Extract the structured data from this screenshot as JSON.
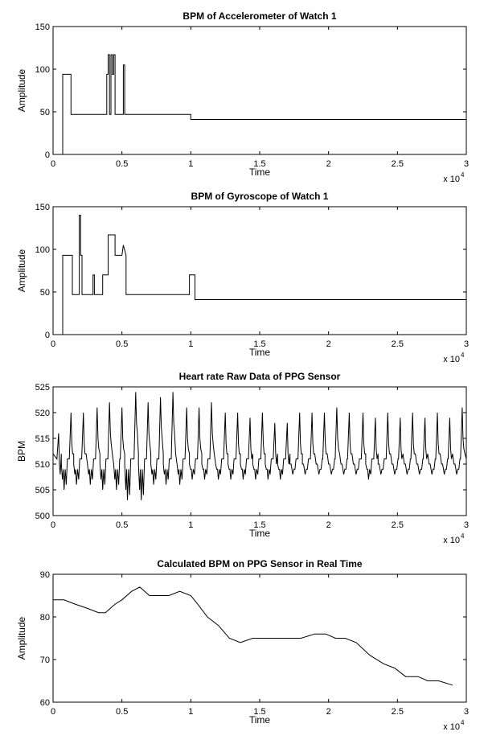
{
  "chart_data": [
    {
      "type": "line",
      "title": "BPM of Accelerometer of Watch 1",
      "xlabel": "Time",
      "ylabel": "Amplitude",
      "x_exponent": "x 10",
      "x_exponent_power": "4",
      "xlim": [
        0,
        3
      ],
      "ylim": [
        0,
        150
      ],
      "xticks": [
        "0",
        "0.5",
        "1",
        "1.5",
        "2",
        "2.5",
        "3"
      ],
      "yticks": [
        "0",
        "50",
        "100",
        "150"
      ],
      "grid": false,
      "step": true,
      "series": [
        {
          "x": [
            0.07,
            0.07,
            0.13,
            0.13,
            0.39,
            0.39,
            0.4,
            0.4,
            0.41,
            0.41,
            0.42,
            0.42,
            0.43,
            0.43,
            0.44,
            0.44,
            0.45,
            0.45,
            0.51,
            0.51,
            0.52,
            0.52,
            1.0,
            1.0,
            3.0
          ],
          "y": [
            0,
            94,
            94,
            47,
            47,
            94,
            94,
            117,
            117,
            47,
            47,
            117,
            117,
            94,
            94,
            117,
            117,
            47,
            47,
            105,
            105,
            47,
            47,
            41,
            41
          ]
        }
      ]
    },
    {
      "type": "line",
      "title": "BPM of Gyroscope of Watch 1",
      "xlabel": "Time",
      "ylabel": "Amplitude",
      "x_exponent": "x 10",
      "x_exponent_power": "4",
      "xlim": [
        0,
        3
      ],
      "ylim": [
        0,
        150
      ],
      "xticks": [
        "0",
        "0.5",
        "1",
        "1.5",
        "2",
        "2.5",
        "3"
      ],
      "yticks": [
        "0",
        "50",
        "100",
        "150"
      ],
      "grid": false,
      "step": true,
      "series": [
        {
          "x": [
            0.07,
            0.07,
            0.14,
            0.14,
            0.19,
            0.19,
            0.2,
            0.2,
            0.21,
            0.21,
            0.29,
            0.29,
            0.3,
            0.3,
            0.36,
            0.36,
            0.4,
            0.4,
            0.45,
            0.45,
            0.5,
            0.51,
            0.53,
            0.53,
            0.99,
            0.99,
            1.03,
            1.03,
            3.0
          ],
          "y": [
            0,
            93,
            93,
            47,
            47,
            140,
            140,
            93,
            93,
            47,
            47,
            70,
            70,
            47,
            47,
            70,
            70,
            117,
            117,
            93,
            93,
            105,
            93,
            47,
            47,
            70,
            70,
            41,
            41
          ]
        }
      ]
    },
    {
      "type": "line",
      "title": "Heart rate Raw Data of PPG Sensor",
      "xlabel": "Time",
      "ylabel": "BPM",
      "x_exponent": "x 10",
      "x_exponent_power": "4",
      "xlim": [
        0,
        3
      ],
      "ylim": [
        500,
        525
      ],
      "xticks": [
        "0",
        "0.5",
        "1",
        "1.5",
        "2",
        "2.5",
        "3"
      ],
      "yticks": [
        "500",
        "505",
        "510",
        "515",
        "520",
        "525"
      ],
      "grid": false,
      "periodic": {
        "x_start": 0.0,
        "x_end": 3.0,
        "peaks": [
          [
            0.04,
            516
          ],
          [
            0.13,
            520
          ],
          [
            0.22,
            520
          ],
          [
            0.32,
            521
          ],
          [
            0.41,
            522
          ],
          [
            0.5,
            521
          ],
          [
            0.6,
            524
          ],
          [
            0.69,
            522
          ],
          [
            0.78,
            523
          ],
          [
            0.87,
            524
          ],
          [
            0.97,
            521
          ],
          [
            1.06,
            521
          ],
          [
            1.15,
            522
          ],
          [
            1.25,
            520
          ],
          [
            1.34,
            520
          ],
          [
            1.43,
            519
          ],
          [
            1.52,
            520
          ],
          [
            1.61,
            518
          ],
          [
            1.7,
            518
          ],
          [
            1.79,
            520
          ],
          [
            1.88,
            520
          ],
          [
            1.97,
            520
          ],
          [
            2.06,
            521
          ],
          [
            2.15,
            520
          ],
          [
            2.25,
            520
          ],
          [
            2.34,
            519
          ],
          [
            2.43,
            520
          ],
          [
            2.52,
            519
          ],
          [
            2.61,
            520
          ],
          [
            2.7,
            519
          ],
          [
            2.79,
            520
          ],
          [
            2.88,
            519
          ],
          [
            2.97,
            521
          ]
        ],
        "troughs": [
          [
            0.08,
            505
          ],
          [
            0.17,
            506
          ],
          [
            0.27,
            506
          ],
          [
            0.36,
            505
          ],
          [
            0.46,
            505
          ],
          [
            0.54,
            503
          ],
          [
            0.64,
            503
          ],
          [
            0.73,
            506
          ],
          [
            0.82,
            506
          ],
          [
            0.92,
            506
          ],
          [
            1.01,
            507
          ],
          [
            1.1,
            507
          ],
          [
            1.2,
            507
          ],
          [
            1.29,
            507
          ],
          [
            1.38,
            507
          ],
          [
            1.47,
            507
          ],
          [
            1.56,
            507
          ],
          [
            1.65,
            507
          ],
          [
            1.74,
            508
          ],
          [
            1.83,
            508
          ],
          [
            1.93,
            508
          ],
          [
            2.02,
            508
          ],
          [
            2.11,
            508
          ],
          [
            2.2,
            508
          ],
          [
            2.29,
            507
          ],
          [
            2.38,
            508
          ],
          [
            2.48,
            508
          ],
          [
            2.57,
            508
          ],
          [
            2.66,
            508
          ],
          [
            2.75,
            508
          ],
          [
            2.84,
            508
          ],
          [
            2.93,
            508
          ]
        ],
        "baseline": 510
      }
    },
    {
      "type": "line",
      "title": "Calculated BPM on PPG Sensor in Real Time",
      "xlabel": "Time",
      "ylabel": "Amplitude",
      "x_exponent": "x 10",
      "x_exponent_power": "4",
      "xlim": [
        0,
        3
      ],
      "ylim": [
        60,
        90
      ],
      "xticks": [
        "0",
        "0.5",
        "1",
        "1.5",
        "2",
        "2.5",
        "3"
      ],
      "yticks": [
        "60",
        "70",
        "80",
        "90"
      ],
      "grid": false,
      "series": [
        {
          "x": [
            0.0,
            0.08,
            0.16,
            0.25,
            0.33,
            0.38,
            0.45,
            0.5,
            0.57,
            0.63,
            0.7,
            0.77,
            0.84,
            0.92,
            1.0,
            1.05,
            1.12,
            1.2,
            1.28,
            1.36,
            1.45,
            1.53,
            1.6,
            1.7,
            1.8,
            1.9,
            1.98,
            2.05,
            2.12,
            2.2,
            2.3,
            2.4,
            2.48,
            2.56,
            2.65,
            2.72,
            2.8,
            2.9
          ],
          "y": [
            84,
            84,
            83,
            82,
            81,
            81,
            83,
            84,
            86,
            87,
            85,
            85,
            85,
            86,
            85,
            83,
            80,
            78,
            75,
            74,
            75,
            75,
            75,
            75,
            75,
            76,
            76,
            75,
            75,
            74,
            71,
            69,
            68,
            66,
            66,
            65,
            65,
            64
          ]
        }
      ]
    }
  ]
}
